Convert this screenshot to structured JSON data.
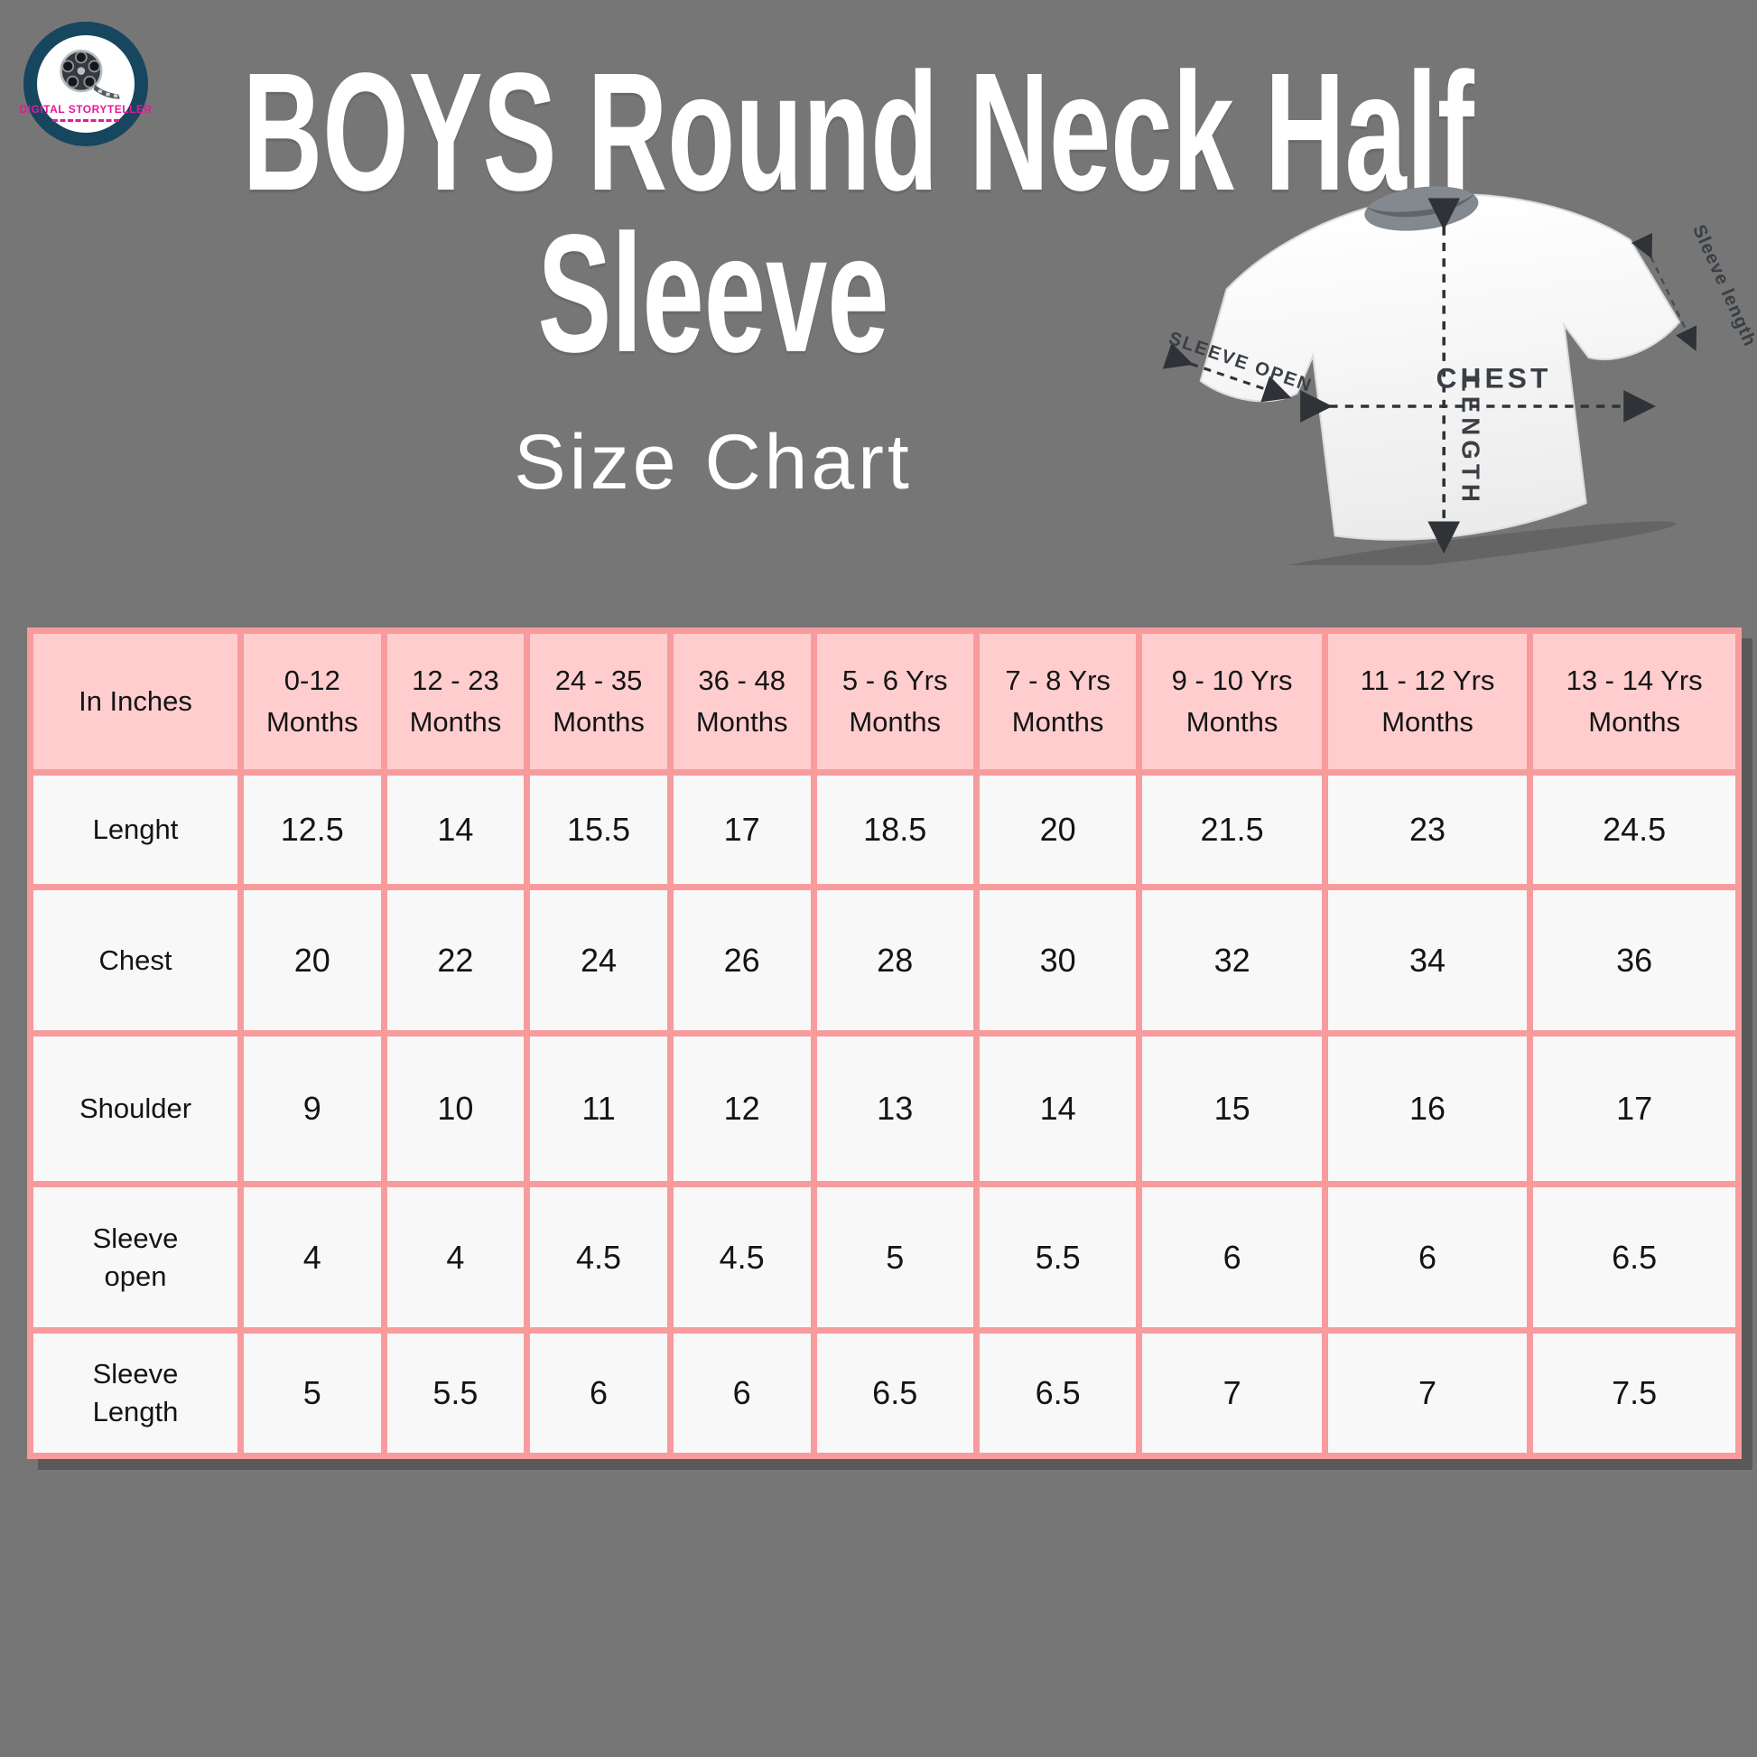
{
  "page": {
    "background_color": "#767676"
  },
  "logo": {
    "brand": "DIGITAL STORYTELLER",
    "icon": "film-reel-icon",
    "ring_color": "#17465f",
    "brand_color": "#e5189e"
  },
  "title": {
    "line1": "BOYS Round Neck Half",
    "line2": "Sleeve"
  },
  "subtitle": "Size Chart",
  "tshirt_diagram": {
    "chest_label": "CHEST",
    "length_label": "LENGTH",
    "sleeve_open_label": "SLEEVE OPEN",
    "sleeve_length_label": "Sleeve length"
  },
  "chart_data": {
    "type": "table",
    "title": "Size Chart",
    "unit_header": "In Inches",
    "columns": [
      {
        "line1": "0-12",
        "line2": "Months"
      },
      {
        "line1": "12 - 23",
        "line2": "Months"
      },
      {
        "line1": "24 - 35",
        "line2": "Months"
      },
      {
        "line1": "36 - 48",
        "line2": "Months"
      },
      {
        "line1": "5 - 6 Yrs",
        "line2": "Months"
      },
      {
        "line1": "7 - 8 Yrs",
        "line2": "Months"
      },
      {
        "line1": "9 - 10 Yrs",
        "line2": "Months"
      },
      {
        "line1": "11 - 12  Yrs",
        "line2": "Months"
      },
      {
        "line1": "13 - 14 Yrs",
        "line2": "Months"
      }
    ],
    "rows": [
      {
        "label": "Lenght",
        "values": [
          "12.5",
          "14",
          "15.5",
          "17",
          "18.5",
          "20",
          "21.5",
          "23",
          "24.5"
        ]
      },
      {
        "label": "Chest",
        "values": [
          "20",
          "22",
          "24",
          "26",
          "28",
          "30",
          "32",
          "34",
          "36"
        ]
      },
      {
        "label": "Shoulder",
        "values": [
          "9",
          "10",
          "11",
          "12",
          "13",
          "14",
          "15",
          "16",
          "17"
        ]
      },
      {
        "label": "Sleeve open",
        "values": [
          "4",
          "4",
          "4.5",
          "4.5",
          "5",
          "5.5",
          "6",
          "6",
          "6.5"
        ]
      },
      {
        "label": "Sleeve Length",
        "values": [
          "5",
          "5.5",
          "6",
          "6",
          "6.5",
          "6.5",
          "7",
          "7",
          "7.5"
        ]
      }
    ],
    "colors": {
      "header_bg": "#ffcdce",
      "cell_bg": "#f9f8f8",
      "border": "#f89b9d",
      "text": "#141414"
    }
  }
}
